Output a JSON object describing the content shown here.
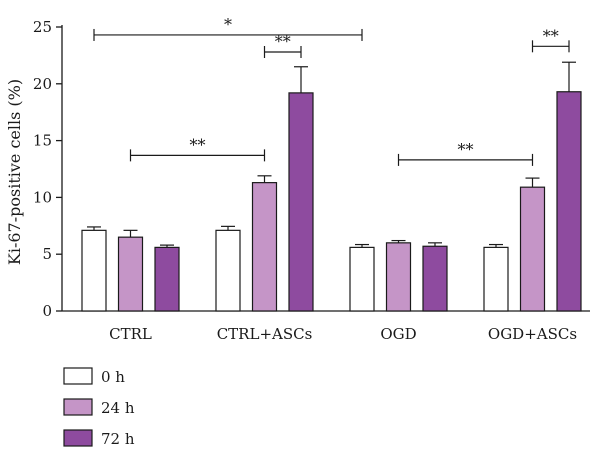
{
  "chart_data": {
    "type": "bar",
    "ylabel": "Ki-67-positive cells (%)",
    "ylim": [
      0,
      25
    ],
    "yticks": [
      0,
      5,
      10,
      15,
      20,
      25
    ],
    "categories": [
      "CTRL",
      "CTRL+ASCs",
      "OGD",
      "OGD+ASCs"
    ],
    "series": [
      {
        "name": "0 h",
        "color": "#ffffff",
        "values": [
          7.1,
          7.1,
          5.6,
          5.6
        ],
        "errors": [
          0.3,
          0.35,
          0.25,
          0.25
        ]
      },
      {
        "name": "24 h",
        "color": "#c595c7",
        "values": [
          6.5,
          11.3,
          6.0,
          10.9
        ],
        "errors": [
          0.6,
          0.6,
          0.2,
          0.8
        ]
      },
      {
        "name": "72 h",
        "color": "#8e4b9f",
        "values": [
          5.6,
          19.2,
          5.7,
          19.3
        ],
        "errors": [
          0.2,
          2.3,
          0.3,
          2.6
        ]
      }
    ],
    "significance": [
      {
        "label": "*",
        "from": [
          0,
          0
        ],
        "to": [
          2,
          0
        ],
        "y": 24.3
      },
      {
        "label": "**",
        "from": [
          1,
          1
        ],
        "to": [
          1,
          2
        ],
        "y": 22.8
      },
      {
        "label": "**",
        "from": [
          0,
          1
        ],
        "to": [
          1,
          1
        ],
        "y": 13.7
      },
      {
        "label": "**",
        "from": [
          3,
          1
        ],
        "to": [
          3,
          2
        ],
        "y": 23.3
      },
      {
        "label": "**",
        "from": [
          2,
          1
        ],
        "to": [
          3,
          1
        ],
        "y": 13.3
      }
    ],
    "legend_position": "bottom-left"
  }
}
